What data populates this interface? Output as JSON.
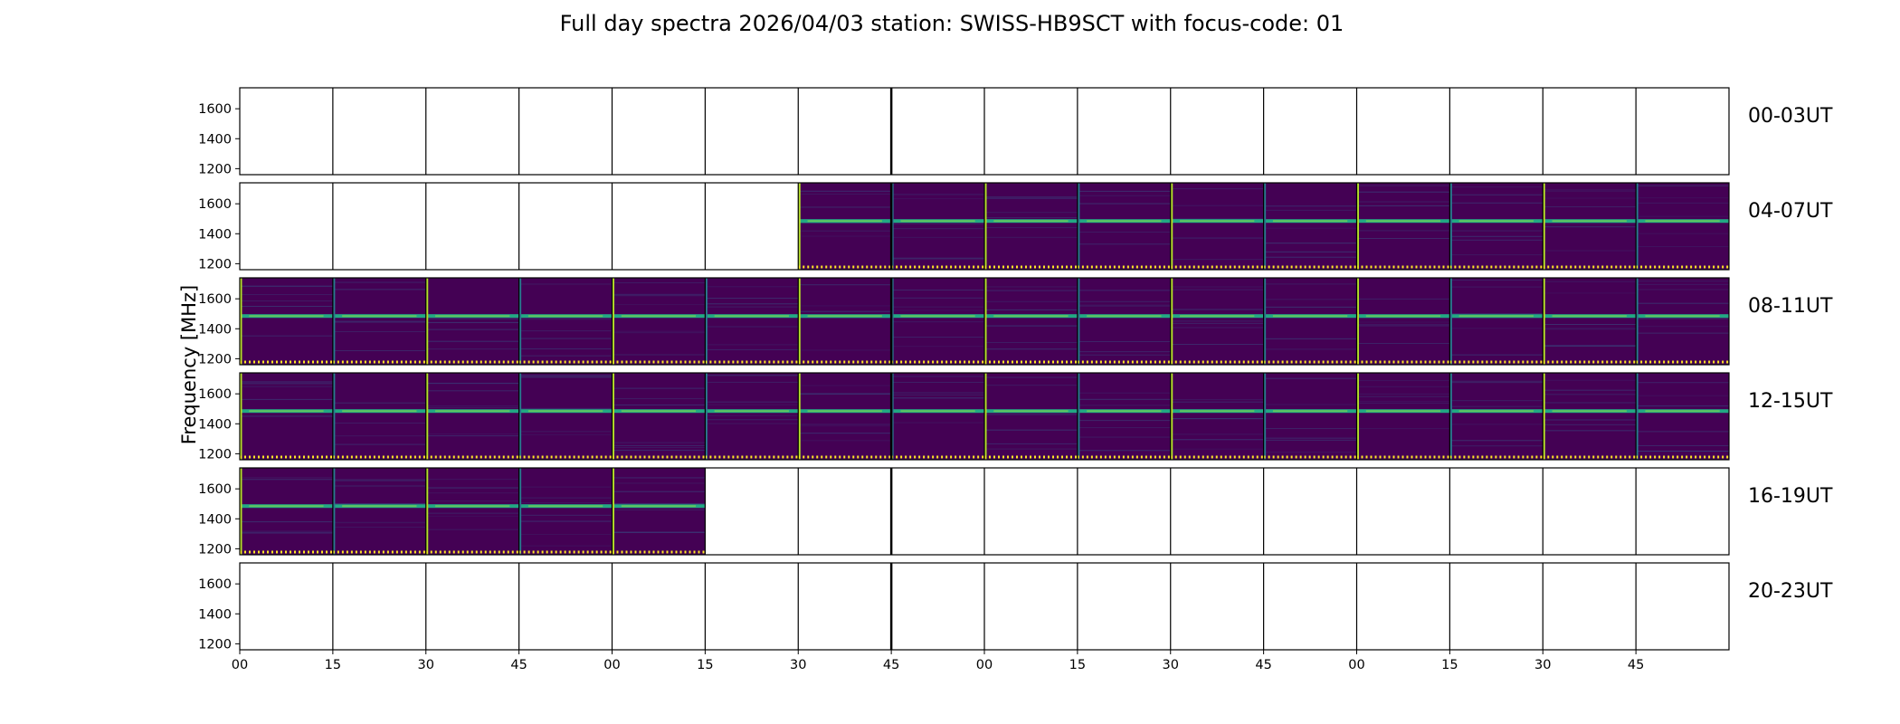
{
  "chart_data": {
    "type": "heatmap",
    "title": "Full day spectra 2026/04/03 station: SWISS-HB9SCT with focus-code: 01",
    "ylabel": "Frequency [MHz]",
    "yticks": [
      "1600",
      "1400",
      "1200"
    ],
    "ytick_values": [
      1600,
      1400,
      1200
    ],
    "ylim": [
      1160,
      1740
    ],
    "xticks": [
      "00",
      "15",
      "30",
      "45",
      "00",
      "15",
      "30",
      "45",
      "00",
      "15",
      "30",
      "45",
      "00",
      "15",
      "30",
      "45"
    ],
    "rows": [
      {
        "label": "00-03UT",
        "filled_segments": []
      },
      {
        "label": "04-07UT",
        "filled_segments": [
          6,
          7,
          8,
          9,
          10,
          11,
          12,
          13,
          14,
          15
        ]
      },
      {
        "label": "08-11UT",
        "filled_segments": [
          0,
          1,
          2,
          3,
          4,
          5,
          6,
          7,
          8,
          9,
          10,
          11,
          12,
          13,
          14,
          15
        ]
      },
      {
        "label": "12-15UT",
        "filled_segments": [
          0,
          1,
          2,
          3,
          4,
          5,
          6,
          7,
          8,
          9,
          10,
          11,
          12,
          13,
          14,
          15
        ]
      },
      {
        "label": "16-19UT",
        "filled_segments": [
          0,
          1,
          2,
          3,
          4
        ]
      },
      {
        "label": "20-23UT",
        "filled_segments": []
      }
    ],
    "segments_per_row": 16,
    "band_frequency_mhz": 1485,
    "colors": {
      "background": "#440154",
      "dark": "#3b0f63",
      "band": "#22a884",
      "band_bright": "#7ad151",
      "edge": "#b5de2b",
      "border": "#000000"
    }
  }
}
